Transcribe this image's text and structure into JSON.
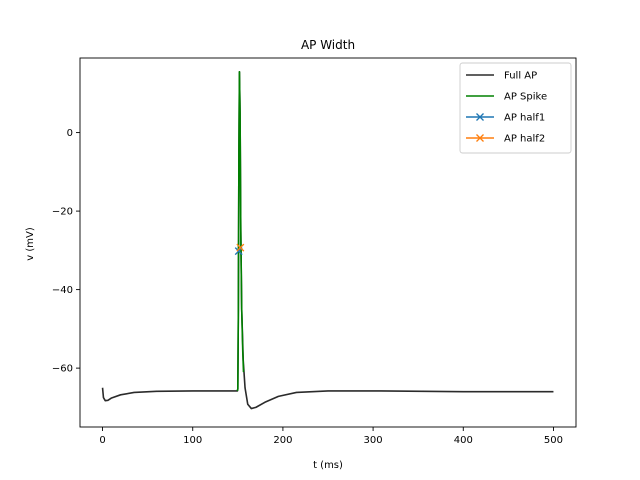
{
  "chart_data": {
    "type": "line",
    "title": "AP Width",
    "xlabel": "t (ms)",
    "ylabel": "v (mV)",
    "xlim": [
      -25,
      525
    ],
    "ylim": [
      -75,
      19
    ],
    "xticks": [
      0,
      100,
      200,
      300,
      400,
      500
    ],
    "yticks": [
      -60,
      -40,
      -20,
      0
    ],
    "ytick_labels": [
      "−60",
      "−40",
      "−20",
      "0"
    ],
    "grid": false,
    "legend_position": "top-right",
    "series": [
      {
        "name": "Full AP",
        "color": "#2b2b2b",
        "marker": "none",
        "points": [
          [
            0,
            -65
          ],
          [
            1,
            -67.5
          ],
          [
            3,
            -68.3
          ],
          [
            6,
            -68.2
          ],
          [
            10,
            -67.6
          ],
          [
            20,
            -66.8
          ],
          [
            35,
            -66.2
          ],
          [
            60,
            -65.9
          ],
          [
            100,
            -65.8
          ],
          [
            149.5,
            -65.8
          ],
          [
            150.0,
            -65.3
          ],
          [
            150.6,
            -45
          ],
          [
            151.2,
            -5
          ],
          [
            151.8,
            15.5
          ],
          [
            152.5,
            5
          ],
          [
            153.3,
            -25
          ],
          [
            154.3,
            -45
          ],
          [
            156,
            -58
          ],
          [
            158,
            -65
          ],
          [
            161,
            -69.2
          ],
          [
            165,
            -70.3
          ],
          [
            170,
            -70
          ],
          [
            180,
            -68.7
          ],
          [
            195,
            -67.2
          ],
          [
            215,
            -66.2
          ],
          [
            250,
            -65.8
          ],
          [
            300,
            -65.8
          ],
          [
            400,
            -66
          ],
          [
            500,
            -66
          ]
        ]
      },
      {
        "name": "AP Spike",
        "color": "#008000",
        "marker": "none",
        "points": [
          [
            149.5,
            -65.8
          ],
          [
            150.0,
            -65.3
          ],
          [
            150.6,
            -45
          ],
          [
            151.2,
            -5
          ],
          [
            151.8,
            15.5
          ],
          [
            152.5,
            5
          ],
          [
            153.3,
            -25
          ],
          [
            154.3,
            -45
          ],
          [
            155.5,
            -56
          ],
          [
            156.3,
            -61
          ]
        ]
      },
      {
        "name": "AP half1",
        "color": "#1f77b4",
        "marker": "x",
        "points": [
          [
            151.0,
            -30.2
          ]
        ]
      },
      {
        "name": "AP half2",
        "color": "#ff7f0e",
        "marker": "x",
        "points": [
          [
            152.8,
            -29.3
          ]
        ]
      }
    ]
  }
}
